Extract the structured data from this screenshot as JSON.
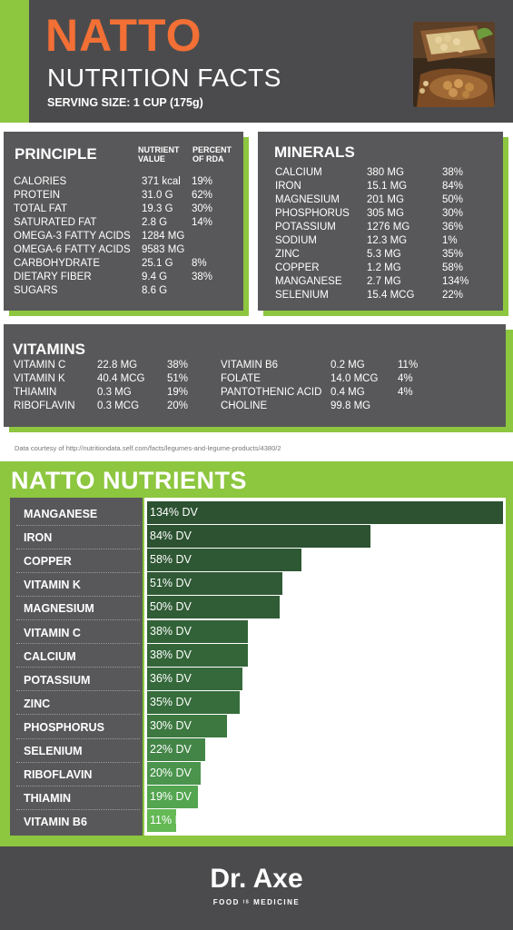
{
  "header": {
    "title": "NATTO",
    "subtitle": "NUTRITION FACTS",
    "serving": "SERVING SIZE: 1 CUP (175g)"
  },
  "principle": {
    "heading": "PRINCIPLE",
    "col_value": [
      "NUTRIENT",
      "VALUE"
    ],
    "col_rda": [
      "PERCENT",
      "OF RDA"
    ],
    "rows": [
      {
        "name": "CALORIES",
        "value": "371 kcal",
        "pct": "19%"
      },
      {
        "name": "PROTEIN",
        "value": "31.0 G",
        "pct": "62%"
      },
      {
        "name": "TOTAL FAT",
        "value": "19.3 G",
        "pct": "30%"
      },
      {
        "name": "SATURATED FAT",
        "value": "2.8 G",
        "pct": "14%"
      },
      {
        "name": "OMEGA-3 FATTY ACIDS",
        "value": "1284 MG",
        "pct": ""
      },
      {
        "name": "OMEGA-6 FATTY ACIDS",
        "value": "9583 MG",
        "pct": ""
      },
      {
        "name": "CARBOHYDRATE",
        "value": "25.1 G",
        "pct": "8%"
      },
      {
        "name": "DIETARY FIBER",
        "value": "9.4 G",
        "pct": "38%"
      },
      {
        "name": "SUGARS",
        "value": "8.6 G",
        "pct": ""
      }
    ]
  },
  "minerals": {
    "heading": "MINERALS",
    "rows": [
      {
        "name": "CALCIUM",
        "value": "380 MG",
        "pct": "38%"
      },
      {
        "name": "IRON",
        "value": "15.1 MG",
        "pct": "84%"
      },
      {
        "name": "MAGNESIUM",
        "value": "201 MG",
        "pct": "50%"
      },
      {
        "name": "PHOSPHORUS",
        "value": "305 MG",
        "pct": "30%"
      },
      {
        "name": "POTASSIUM",
        "value": "1276 MG",
        "pct": "36%"
      },
      {
        "name": "SODIUM",
        "value": "12.3 MG",
        "pct": "1%"
      },
      {
        "name": "ZINC",
        "value": "5.3 MG",
        "pct": "35%"
      },
      {
        "name": "COPPER",
        "value": "1.2 MG",
        "pct": "58%"
      },
      {
        "name": "MANGANESE",
        "value": "2.7 MG",
        "pct": "134%"
      },
      {
        "name": "SELENIUM",
        "value": "15.4 MCG",
        "pct": "22%"
      }
    ]
  },
  "vitamins": {
    "heading": "VITAMINS",
    "left": [
      {
        "name": "VITAMIN C",
        "value": "22.8 MG",
        "pct": "38%"
      },
      {
        "name": "VITAMIN K",
        "value": "40.4 MCG",
        "pct": "51%"
      },
      {
        "name": "THIAMIN",
        "value": "0.3 MG",
        "pct": "19%"
      },
      {
        "name": "RIBOFLAVIN",
        "value": "0.3 MCG",
        "pct": "20%"
      }
    ],
    "right": [
      {
        "name": "VITAMIN B6",
        "value": "0.2 MG",
        "pct": "11%"
      },
      {
        "name": "FOLATE",
        "value": "14.0 MCG",
        "pct": "4%"
      },
      {
        "name": "PANTOTHENIC ACID",
        "value": "0.4 MG",
        "pct": "4%"
      },
      {
        "name": "CHOLINE",
        "value": "99.8 MG",
        "pct": ""
      }
    ]
  },
  "source": "Data courtesy of http://nutritiondata.self.com/facts/legumes-and-legume-products/4380/2",
  "nutrients_title": "NATTO NUTRIENTS",
  "chart_data": {
    "type": "bar",
    "orientation": "horizontal",
    "title": "NATTO NUTRIENTS",
    "categories": [
      "MANGANESE",
      "IRON",
      "COPPER",
      "VITAMIN K",
      "MAGNESIUM",
      "VITAMIN C",
      "CALCIUM",
      "POTASSIUM",
      "ZINC",
      "PHOSPHORUS",
      "SELENIUM",
      "RIBOFLAVIN",
      "THIAMIN",
      "VITAMIN B6"
    ],
    "values": [
      134,
      84,
      58,
      51,
      50,
      38,
      38,
      36,
      35,
      30,
      22,
      20,
      19,
      11
    ],
    "data_labels": [
      "134% DV",
      "84% DV",
      "58% DV",
      "51% DV",
      "50% DV",
      "38% DV",
      "38% DV",
      "36% DV",
      "35% DV",
      "30% DV",
      "22% DV",
      "20% DV",
      "19% DV",
      "11% DV"
    ],
    "unit": "% DV",
    "xlim": [
      0,
      134
    ],
    "colors": [
      "#2c5231",
      "#2c5231",
      "#2e5733",
      "#2f5a35",
      "#305c36",
      "#326338",
      "#336539",
      "#35693b",
      "#376d3c",
      "#3c7840",
      "#438547",
      "#4a944d",
      "#53a550",
      "#64b955"
    ],
    "grid": false
  },
  "footer": {
    "brand": "Dr. Axe",
    "tagline_a": "FOOD",
    "tagline_b": "IS",
    "tagline_c": "MEDICINE"
  }
}
